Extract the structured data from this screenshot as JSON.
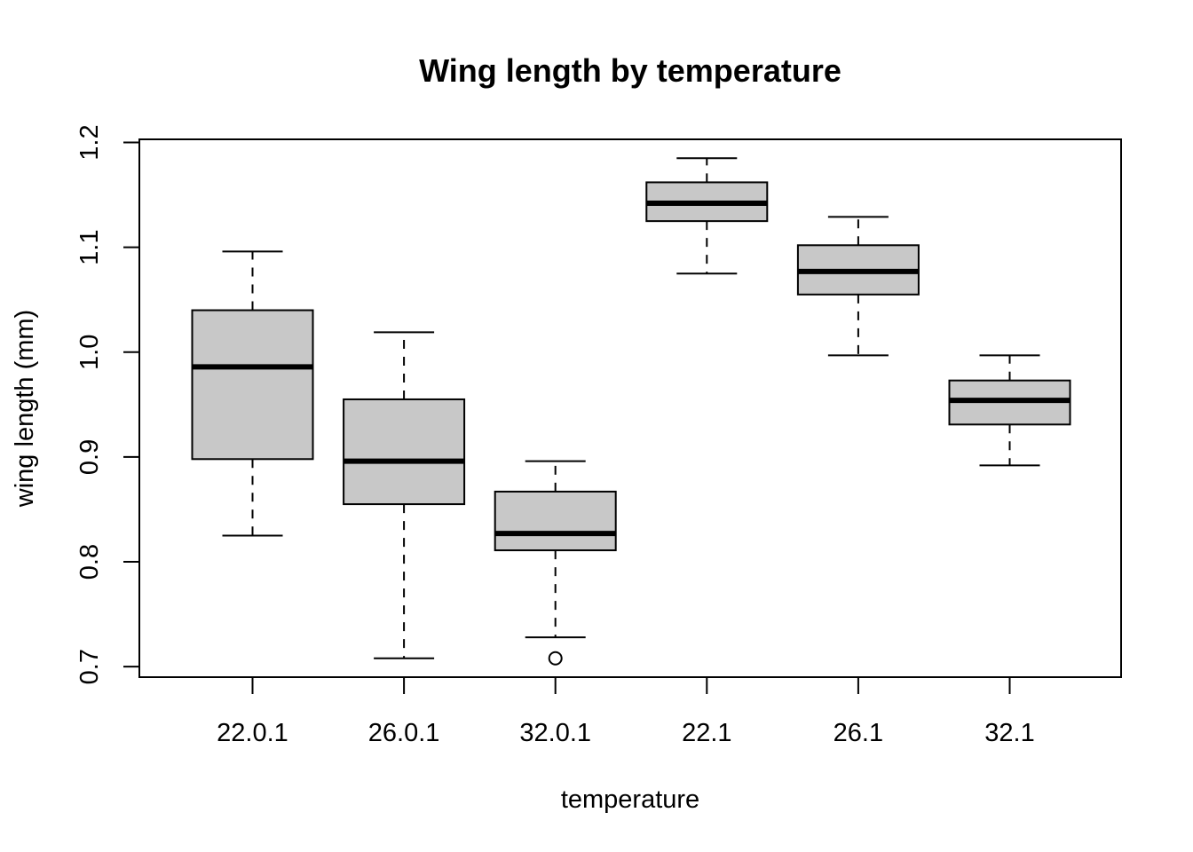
{
  "chart_data": {
    "type": "boxplot",
    "title": "Wing length by temperature",
    "xlabel": "temperature",
    "ylabel": "wing length (mm)",
    "ylim": [
      0.69,
      1.203
    ],
    "yticks": [
      "0.7",
      "0.8",
      "0.9",
      "1.0",
      "1.1",
      "1.2"
    ],
    "grid": false,
    "legend": "none",
    "box_fill": "#c8c8c8",
    "categories": [
      "22.0.1",
      "26.0.1",
      "32.0.1",
      "22.1",
      "26.1",
      "32.1"
    ],
    "boxes": [
      {
        "category": "22.0.1",
        "whisker_low": 0.825,
        "q1": 0.898,
        "median": 0.986,
        "q3": 1.04,
        "whisker_high": 1.096,
        "outliers": []
      },
      {
        "category": "26.0.1",
        "whisker_low": 0.708,
        "q1": 0.855,
        "median": 0.896,
        "q3": 0.955,
        "whisker_high": 1.019,
        "outliers": []
      },
      {
        "category": "32.0.1",
        "whisker_low": 0.728,
        "q1": 0.811,
        "median": 0.827,
        "q3": 0.867,
        "whisker_high": 0.896,
        "outliers": [
          0.708
        ]
      },
      {
        "category": "22.1",
        "whisker_low": 1.075,
        "q1": 1.125,
        "median": 1.142,
        "q3": 1.162,
        "whisker_high": 1.185,
        "outliers": []
      },
      {
        "category": "26.1",
        "whisker_low": 0.997,
        "q1": 1.055,
        "median": 1.077,
        "q3": 1.102,
        "whisker_high": 1.129,
        "outliers": []
      },
      {
        "category": "32.1",
        "whisker_low": 0.892,
        "q1": 0.931,
        "median": 0.954,
        "q3": 0.973,
        "whisker_high": 0.997,
        "outliers": []
      }
    ]
  }
}
